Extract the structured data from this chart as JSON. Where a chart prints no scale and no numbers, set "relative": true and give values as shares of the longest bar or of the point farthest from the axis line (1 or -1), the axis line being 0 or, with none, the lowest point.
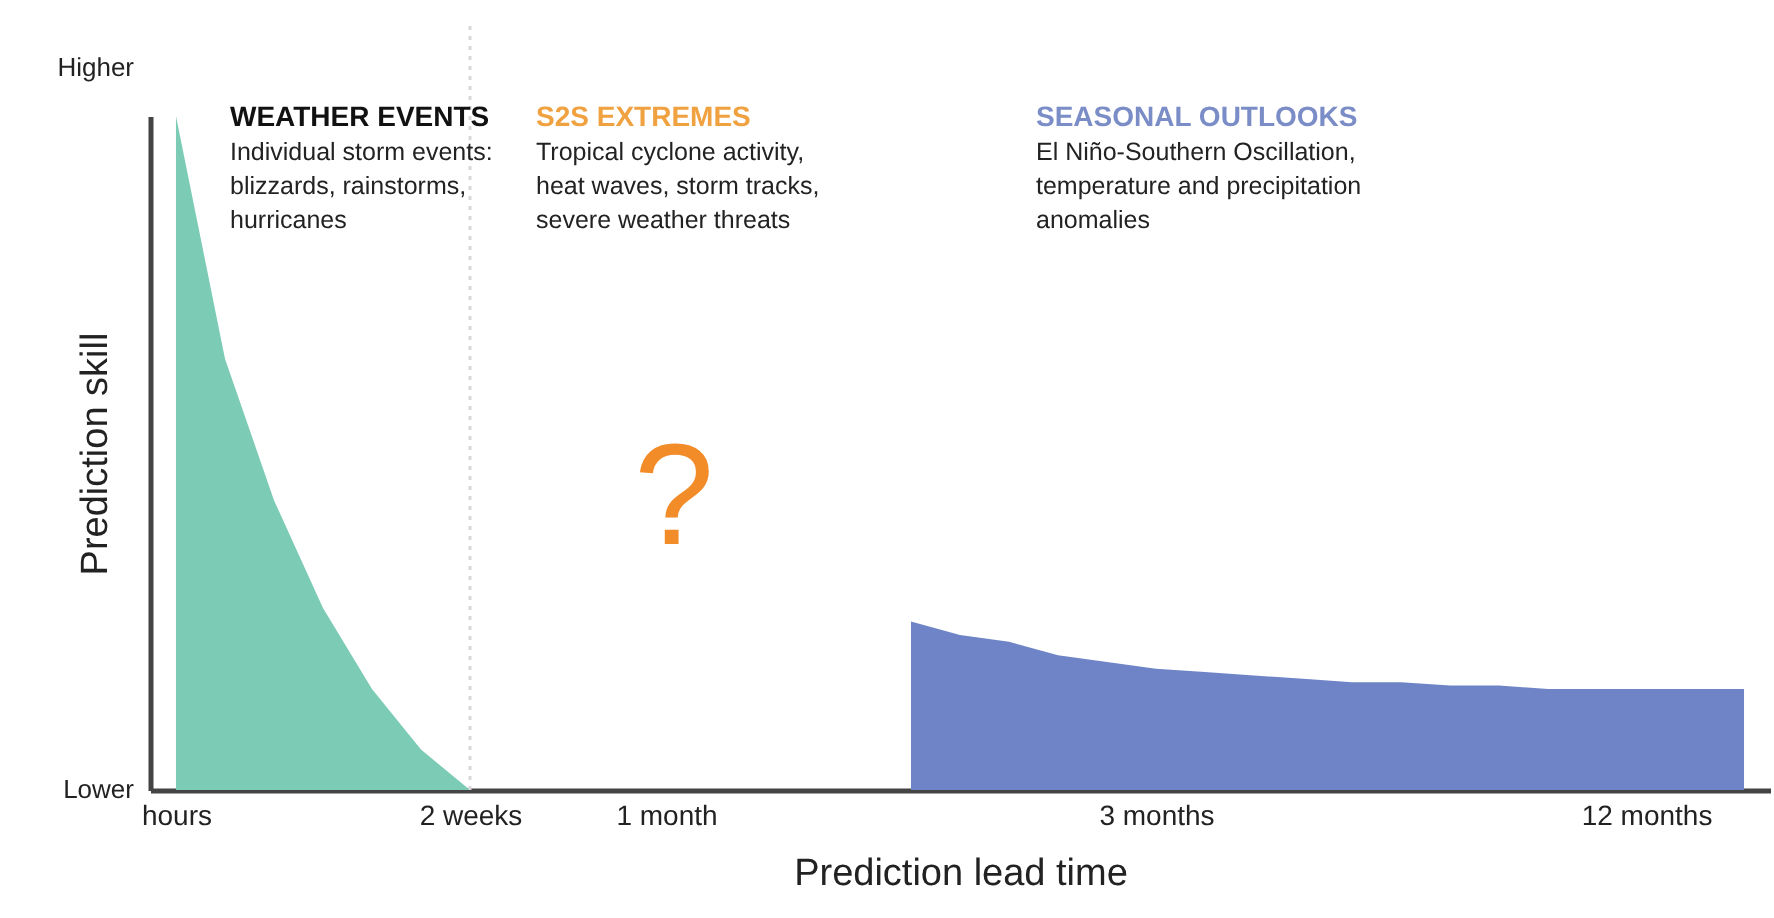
{
  "chart_data": {
    "type": "area",
    "relative": true,
    "xlabel": "Prediction lead time",
    "ylabel": "Prediction skill",
    "categories": [
      "hours",
      null,
      null,
      null,
      null,
      null,
      "2 weeks",
      null,
      null,
      null,
      "1 month",
      null,
      null,
      null,
      null,
      null,
      null,
      null,
      null,
      null,
      "3 months",
      null,
      null,
      null,
      null,
      null,
      null,
      null,
      null,
      null,
      "12 months",
      null,
      null
    ],
    "series": [
      {
        "color": "#7ccbb5",
        "values": [
          1,
          0.64,
          0.43,
          0.27,
          0.15,
          0.06,
          0,
          null,
          null,
          null,
          null,
          null,
          null,
          null,
          null,
          null,
          null,
          null,
          null,
          null,
          null,
          null,
          null,
          null,
          null,
          null,
          null,
          null,
          null,
          null,
          null,
          null,
          null
        ]
      },
      {
        "color": "#6e84c6",
        "values": [
          null,
          null,
          null,
          null,
          null,
          null,
          null,
          null,
          null,
          null,
          null,
          null,
          null,
          null,
          null,
          0.25,
          0.23,
          0.22,
          0.2,
          0.19,
          0.18,
          0.175,
          0.17,
          0.165,
          0.16,
          0.16,
          0.155,
          0.155,
          0.15,
          0.15,
          0.15,
          0.15,
          0.15
        ]
      }
    ],
    "ref_lines": [
      {
        "axis": "x",
        "value": "2 weeks",
        "color": "#d8d8d8",
        "line_style": "dotted"
      }
    ],
    "annotations": [
      "Higher",
      "Lower",
      "WEATHER EVENTS",
      "Individual storm events:\nblizzards, rainstorms,\nhurricanes",
      "S2S EXTREMES",
      "Tropical cyclone activity,\nheat waves, storm tracks,\nsevere weather threats",
      "SEASONAL OUTLOOKS",
      "El Niño-Southern Oscillation,\ntemperature and precipitation\nanomalies",
      "?"
    ]
  }
}
